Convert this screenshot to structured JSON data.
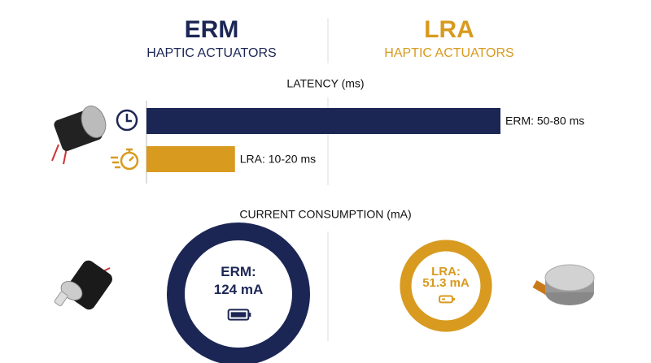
{
  "header": {
    "erm": {
      "title": "ERM",
      "subtitle": "HAPTIC ACTUATORS"
    },
    "lra": {
      "title": "LRA",
      "subtitle": "HAPTIC ACTUATORS"
    }
  },
  "chart_data": [
    {
      "type": "bar",
      "title": "LATENCY (ms)",
      "values": [
        80,
        20
      ],
      "value_labels": [
        "ERM: 50-80 ms",
        "LRA: 10-20 ms"
      ],
      "colors": [
        "#1b2654",
        "#d89a1f"
      ],
      "xlim": [
        0,
        80
      ]
    },
    {
      "type": "bubble",
      "title": "CURRENT CONSUMPTION (mA)",
      "names": [
        "ERM:",
        "LRA:"
      ],
      "values": [
        124,
        51.3
      ],
      "value_labels": [
        "124 mA",
        "51.3 mA"
      ],
      "colors": [
        "#1b2654",
        "#d89a1f"
      ]
    }
  ]
}
